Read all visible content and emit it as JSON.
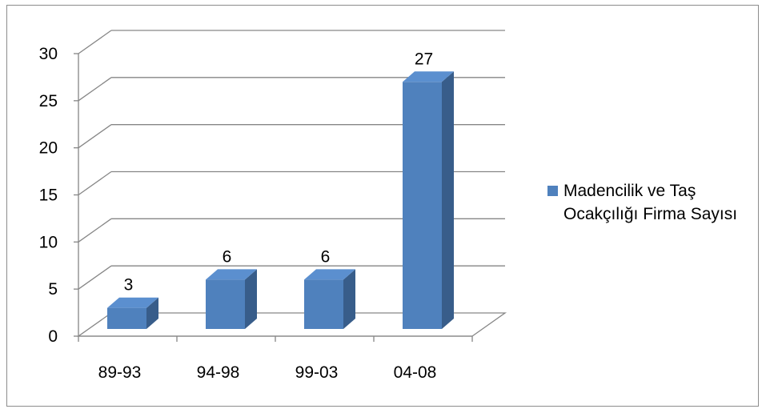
{
  "chart_data": {
    "type": "bar",
    "style": "3d-clustered-column",
    "categories": [
      "89-93",
      "94-98",
      "99-03",
      "04-08"
    ],
    "series": [
      {
        "name": "Madencilik ve Taş Ocakçılığı Firma Sayısı",
        "values": [
          3,
          6,
          6,
          27
        ]
      }
    ],
    "data_labels": [
      "3",
      "6",
      "6",
      "27"
    ],
    "y_ticks": [
      "0",
      "5",
      "10",
      "15",
      "20",
      "25",
      "30"
    ],
    "ylim": [
      0,
      30
    ],
    "title": "",
    "xlabel": "",
    "ylabel": "",
    "grid": true,
    "legend_position": "right",
    "colors": {
      "bar_front": "#4F81BD",
      "bar_side": "#385D8A",
      "bar_top": "#5B8FCF",
      "gridline": "#868686",
      "frame": "#8C8C8C"
    }
  }
}
